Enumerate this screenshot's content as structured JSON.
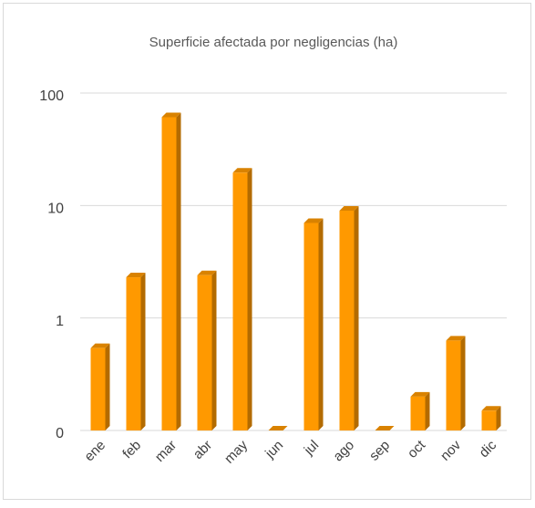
{
  "chart_data": {
    "type": "bar",
    "title": "Superficie afectada por negligencias (ha)",
    "categories": [
      "ene",
      "feb",
      "mar",
      "abr",
      "may",
      "jun",
      "jul",
      "ago",
      "sep",
      "oct",
      "nov",
      "dic"
    ],
    "values": [
      0.54,
      2.3,
      61,
      2.4,
      19.6,
      0.1,
      7,
      9,
      0.1,
      0.2,
      0.63,
      0.15
    ],
    "color": "#ff9900",
    "log_scale": true,
    "ylim": [
      0.1,
      100
    ],
    "yticks": [
      {
        "value": 0.1,
        "label": "0"
      },
      1,
      10,
      100
    ],
    "grid": true
  }
}
